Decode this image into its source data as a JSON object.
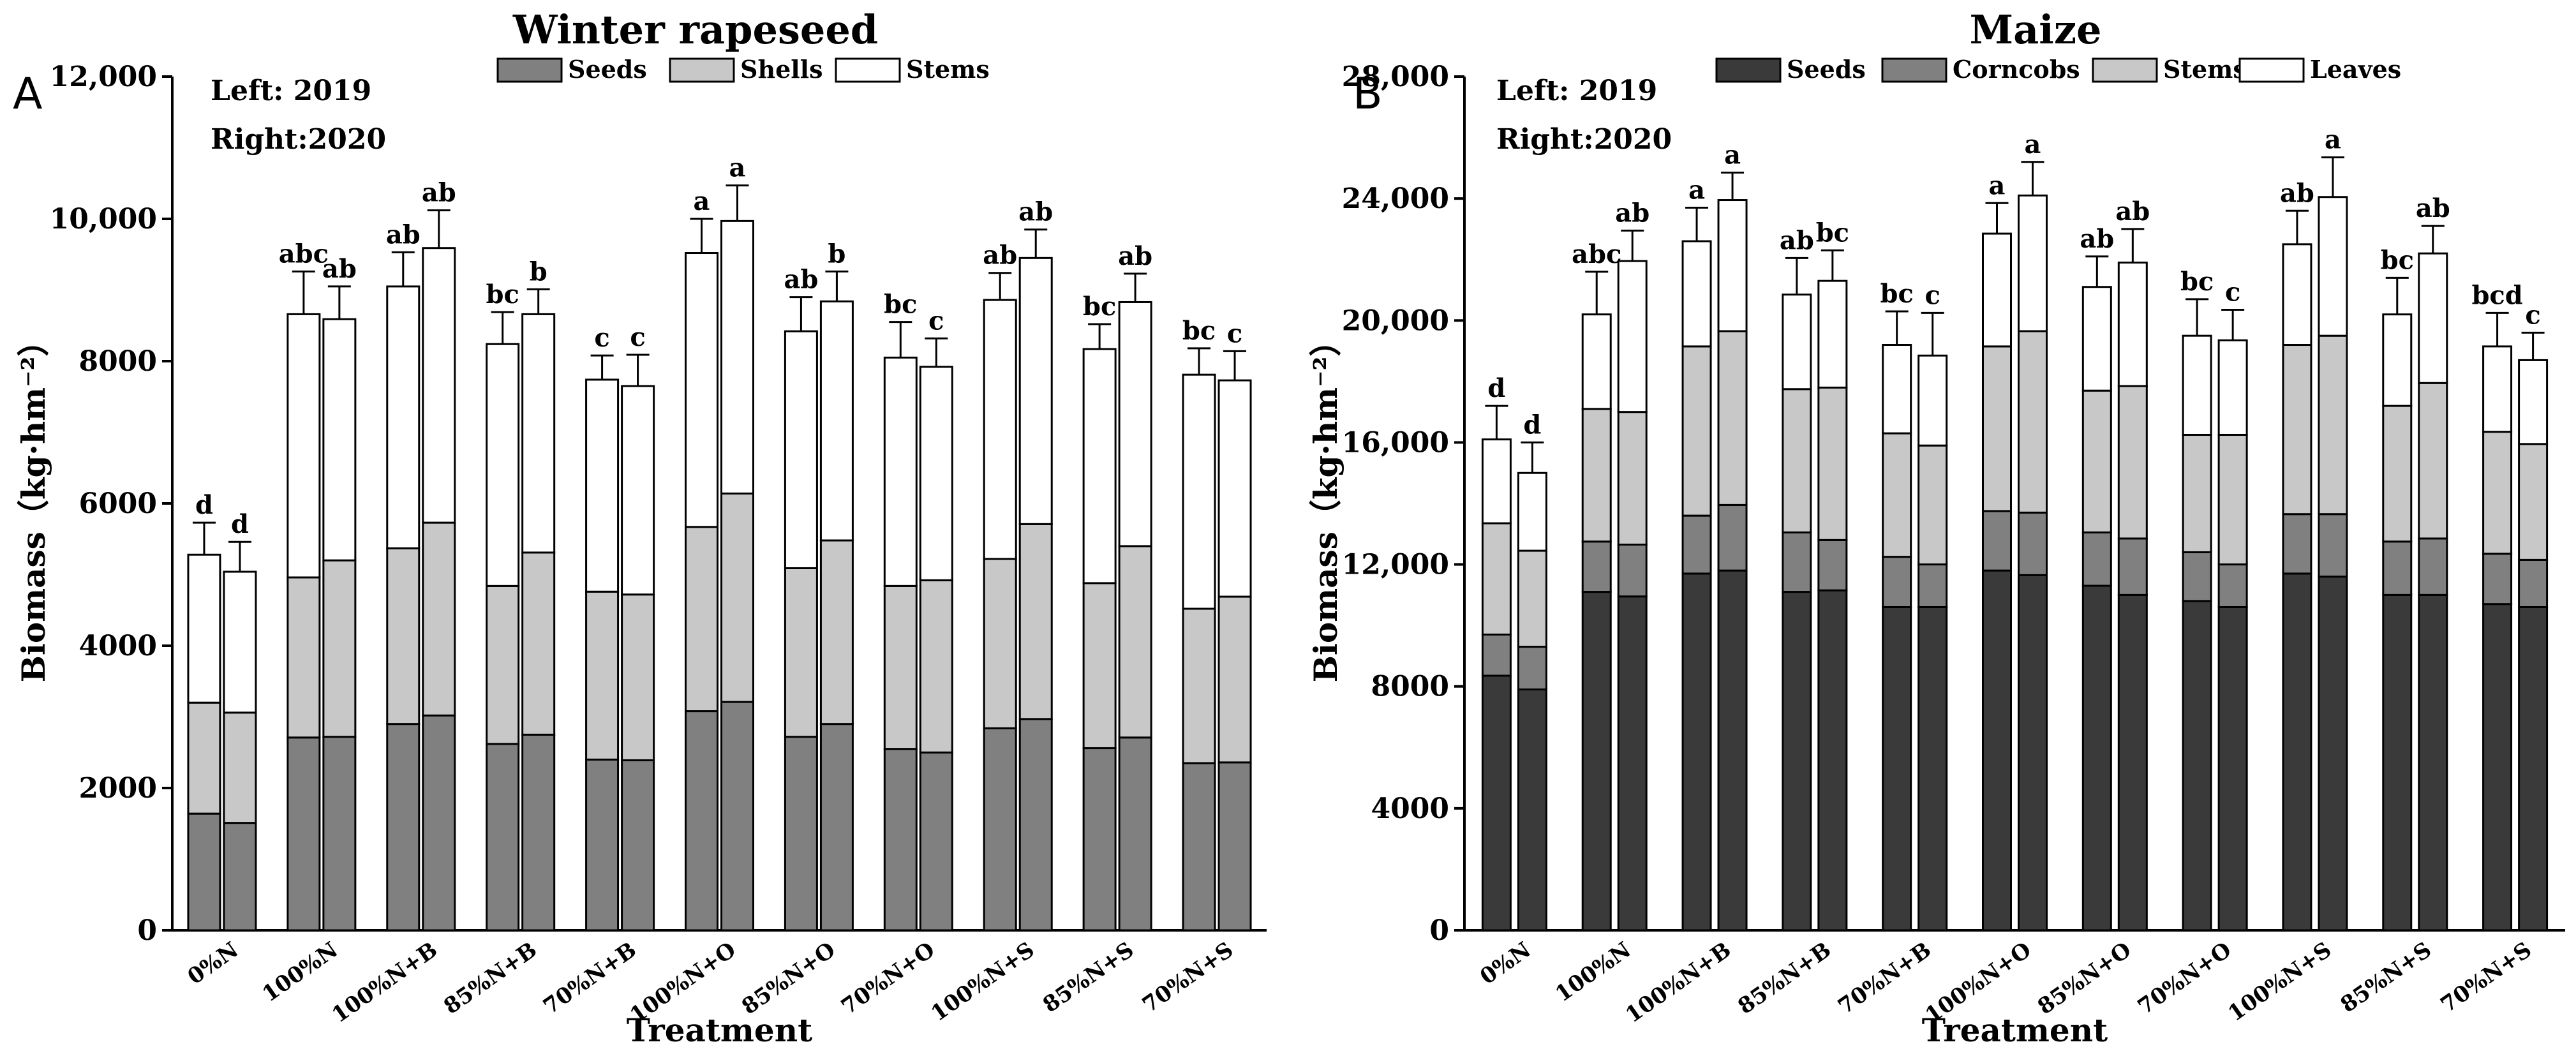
{
  "chart_data": [
    {
      "type": "bar",
      "stacked": true,
      "panel_label": "A",
      "title": "Winter rapeseed",
      "note_lines": [
        "Left: 2019",
        "Right:2020"
      ],
      "xlabel": "Treatment",
      "ylabel": "Biomass（kg·hm⁻²）",
      "ylim": [
        0,
        12000
      ],
      "yticks": [
        0,
        2000,
        4000,
        6000,
        8000,
        10000,
        12000
      ],
      "ytick_labels": [
        "0",
        "2000",
        "4000",
        "6000",
        "8000",
        "10,000",
        "12,000"
      ],
      "grid": false,
      "legend_position": "top-center",
      "categories": [
        "0%N",
        "100%N",
        "100%N+B",
        "85%N+B",
        "70%N+B",
        "100%N+O",
        "85%N+O",
        "70%N+O",
        "100%N+S",
        "85%N+S",
        "70%N+S"
      ],
      "bars_per_category": [
        "2019",
        "2020"
      ],
      "series": [
        {
          "name": "Seeds",
          "color": "#808080",
          "values_2019": [
            1640,
            2710,
            2900,
            2620,
            2400,
            3080,
            2720,
            2550,
            2840,
            2560,
            2350
          ],
          "values_2020": [
            1510,
            2720,
            3020,
            2750,
            2390,
            3210,
            2900,
            2500,
            2970,
            2710,
            2360
          ]
        },
        {
          "name": "Shells",
          "color": "#c8c8c8",
          "values_2019": [
            1560,
            2250,
            2470,
            2220,
            2360,
            2590,
            2370,
            2290,
            2380,
            2320,
            2170
          ],
          "values_2020": [
            1550,
            2480,
            2710,
            2560,
            2330,
            2930,
            2580,
            2420,
            2740,
            2690,
            2330
          ]
        },
        {
          "name": "Stems",
          "color": "#ffffff",
          "values_2019": [
            2080,
            3700,
            3680,
            3400,
            2980,
            3850,
            3330,
            3210,
            3640,
            3290,
            3290
          ],
          "values_2020": [
            1980,
            3390,
            3860,
            3350,
            2930,
            3830,
            3360,
            3000,
            3740,
            3430,
            3040
          ]
        }
      ],
      "error_bars_2019": [
        450,
        600,
        480,
        450,
        340,
        480,
        480,
        500,
        380,
        350,
        370
      ],
      "error_bars_2020": [
        420,
        460,
        530,
        350,
        440,
        500,
        420,
        400,
        400,
        400,
        410
      ],
      "significance_2019": [
        "d",
        "abc",
        "ab",
        "bc",
        "c",
        "a",
        "ab",
        "bc",
        "ab",
        "bc",
        "bc"
      ],
      "significance_2020": [
        "d",
        "ab",
        "ab",
        "b",
        "c",
        "a",
        "b",
        "c",
        "ab",
        "ab",
        "c"
      ]
    },
    {
      "type": "bar",
      "stacked": true,
      "panel_label": "B",
      "title": "Maize",
      "note_lines": [
        "Left: 2019",
        "Right:2020"
      ],
      "xlabel": "Treatment",
      "ylabel": "Biomass（kg·hm⁻²）",
      "ylim": [
        0,
        28000
      ],
      "yticks": [
        0,
        4000,
        8000,
        12000,
        16000,
        20000,
        24000,
        28000
      ],
      "ytick_labels": [
        "0",
        "4000",
        "8000",
        "12,000",
        "16,000",
        "20,000",
        "24,000",
        "28,000"
      ],
      "grid": false,
      "legend_position": "top-right",
      "categories": [
        "0%N",
        "100%N",
        "100%N+B",
        "85%N+B",
        "70%N+B",
        "100%N+O",
        "85%N+O",
        "70%N+O",
        "100%N+S",
        "85%N+S",
        "70%N+S"
      ],
      "bars_per_category": [
        "2019",
        "2020"
      ],
      "series": [
        {
          "name": "Seeds",
          "color": "#3a3a3a",
          "values_2019": [
            8350,
            11100,
            11700,
            11100,
            10600,
            11800,
            11300,
            10800,
            11700,
            11000,
            10700
          ],
          "values_2020": [
            7900,
            10950,
            11800,
            11150,
            10600,
            11650,
            11000,
            10600,
            11600,
            11000,
            10600
          ]
        },
        {
          "name": "Corncobs",
          "color": "#808080",
          "values_2019": [
            1350,
            1650,
            1900,
            1950,
            1650,
            1950,
            1750,
            1600,
            1950,
            1750,
            1650
          ],
          "values_2020": [
            1400,
            1700,
            2150,
            1650,
            1400,
            2050,
            1850,
            1400,
            2050,
            1850,
            1550
          ]
        },
        {
          "name": "Stems",
          "color": "#c8c8c8",
          "values_2019": [
            3650,
            4350,
            5550,
            4700,
            4050,
            5400,
            4650,
            3850,
            5550,
            4450,
            4000
          ],
          "values_2020": [
            3150,
            4350,
            5700,
            5000,
            3900,
            5950,
            5000,
            4250,
            5850,
            5100,
            3800
          ]
        },
        {
          "name": "Leaves",
          "color": "#ffffff",
          "values_2019": [
            2750,
            3100,
            3450,
            3100,
            2900,
            3700,
            3400,
            3250,
            3300,
            3000,
            2800
          ],
          "values_2020": [
            2550,
            4950,
            4300,
            3500,
            2950,
            4450,
            4050,
            3100,
            4550,
            4250,
            2750
          ]
        }
      ],
      "error_bars_2019": [
        1100,
        1400,
        1100,
        1200,
        1100,
        1000,
        1000,
        1200,
        1100,
        1200,
        1100
      ],
      "error_bars_2020": [
        1000,
        1000,
        900,
        1000,
        1400,
        1100,
        1100,
        1000,
        1300,
        900,
        900
      ],
      "significance_2019": [
        "d",
        "abc",
        "a",
        "ab",
        "bc",
        "a",
        "ab",
        "bc",
        "ab",
        "bc",
        "bcd"
      ],
      "significance_2020": [
        "d",
        "ab",
        "a",
        "bc",
        "c",
        "a",
        "ab",
        "c",
        "a",
        "ab",
        "c"
      ]
    }
  ]
}
